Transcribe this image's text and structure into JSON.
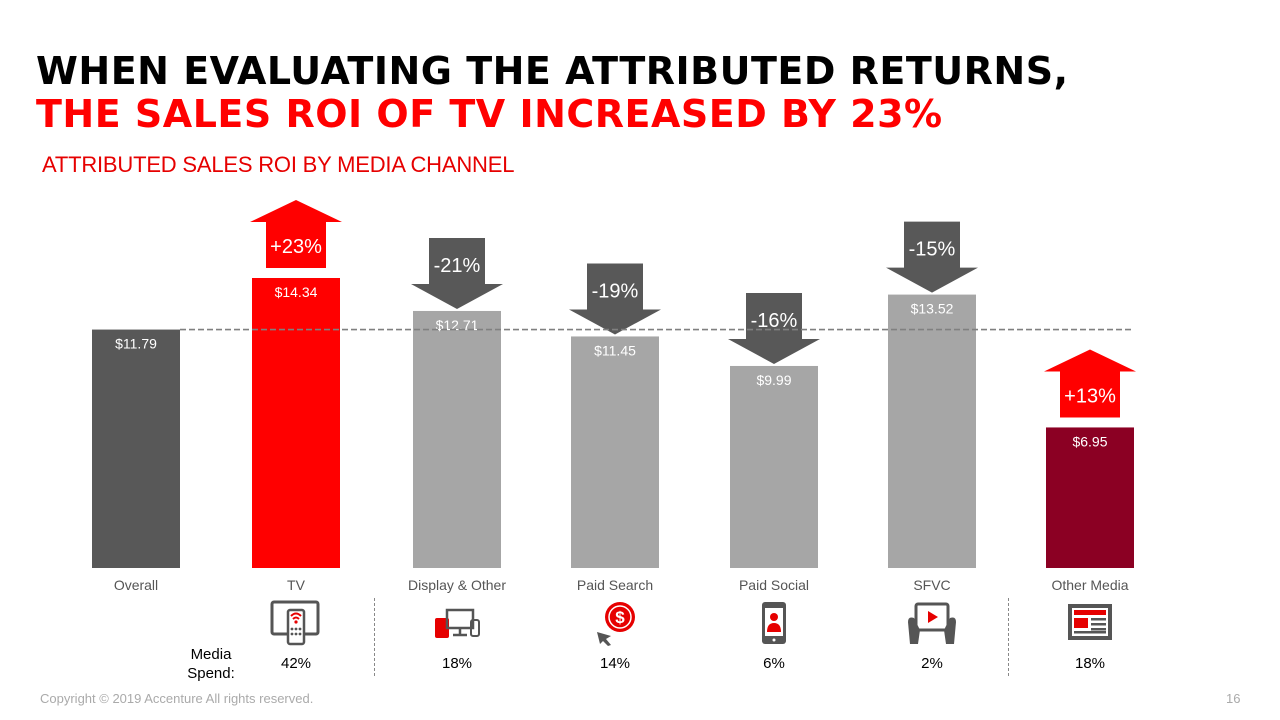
{
  "title_line1": "WHEN EVALUATING THE ATTRIBUTED RETURNS,",
  "title_line2": "THE SALES ROI OF TV INCREASED BY 23%",
  "media_spend_label": [
    "Media",
    "Spend:"
  ],
  "copyright": "Copyright © 2019 Accenture All rights reserved.",
  "page_number": "16",
  "colors": {
    "overall": "#585858",
    "tv": "#ff0000",
    "other": "#a6a6a6",
    "other_media": "#8b0023",
    "down_arrow": "#585858",
    "up_arrow": "#ff0000"
  },
  "chart_data": {
    "type": "bar",
    "title": "ATTRIBUTED SALES ROI BY MEDIA CHANNEL",
    "categories": [
      "Overall",
      "TV",
      "Display & Other",
      "Paid Search",
      "Paid Social",
      "SFVC",
      "Other Media"
    ],
    "values": [
      11.79,
      14.34,
      12.71,
      11.45,
      9.99,
      13.52,
      6.95
    ],
    "value_labels": [
      "$11.79",
      "$14.34",
      "$12.71",
      "$11.45",
      "$9.99",
      "$13.52",
      "$6.95"
    ],
    "change_labels": [
      "",
      "+23%",
      "-21%",
      "-19%",
      "-16%",
      "-15%",
      "+13%"
    ],
    "change_direction": [
      "",
      "up",
      "down",
      "down",
      "down",
      "down",
      "up"
    ],
    "reference_line": 11.79,
    "media_spend": [
      "",
      "42%",
      "18%",
      "14%",
      "6%",
      "2%",
      "18%"
    ],
    "icons": [
      "",
      "tv-remote-icon",
      "devices-icon",
      "dollar-click-icon",
      "smartphone-user-icon",
      "tablet-video-icon",
      "newspaper-icon"
    ],
    "ylim": [
      0,
      14.34
    ],
    "grid": false,
    "legend": "none"
  }
}
